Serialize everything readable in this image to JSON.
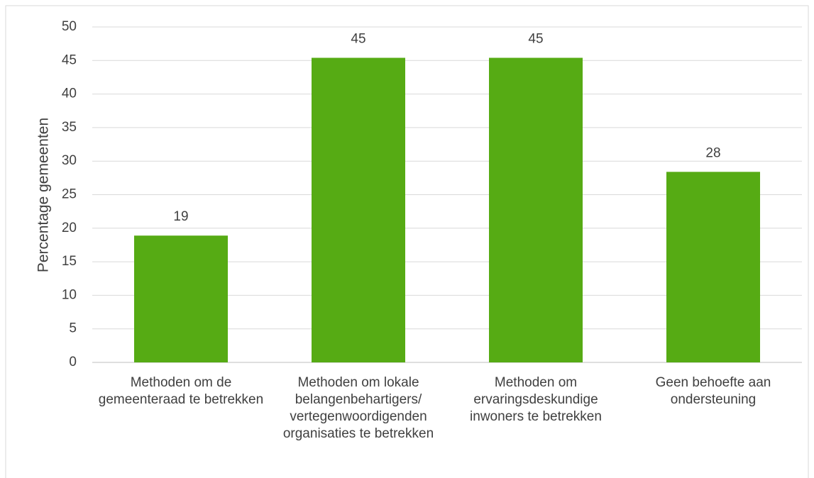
{
  "chart_data": {
    "type": "bar",
    "y_label": "Percentage gemeenten",
    "categories": [
      "Methoden om de gemeenteraad te betrekken",
      "Methoden om lokale belangenbehartigers/ vertegenwoordigenden organisaties te betrekken",
      "Methoden om ervaringsdeskundige inwoners te betrekken",
      "Geen behoefte aan ondersteuning"
    ],
    "values": [
      18.9,
      45.4,
      45.4,
      28.4
    ],
    "value_labels": [
      "19",
      "45",
      "45",
      "28"
    ],
    "color": "#56ab14",
    "ylim": [
      0,
      50
    ],
    "yticks": [
      0,
      5,
      10,
      15,
      20,
      25,
      30,
      35,
      40,
      45,
      50
    ],
    "grid": true
  }
}
